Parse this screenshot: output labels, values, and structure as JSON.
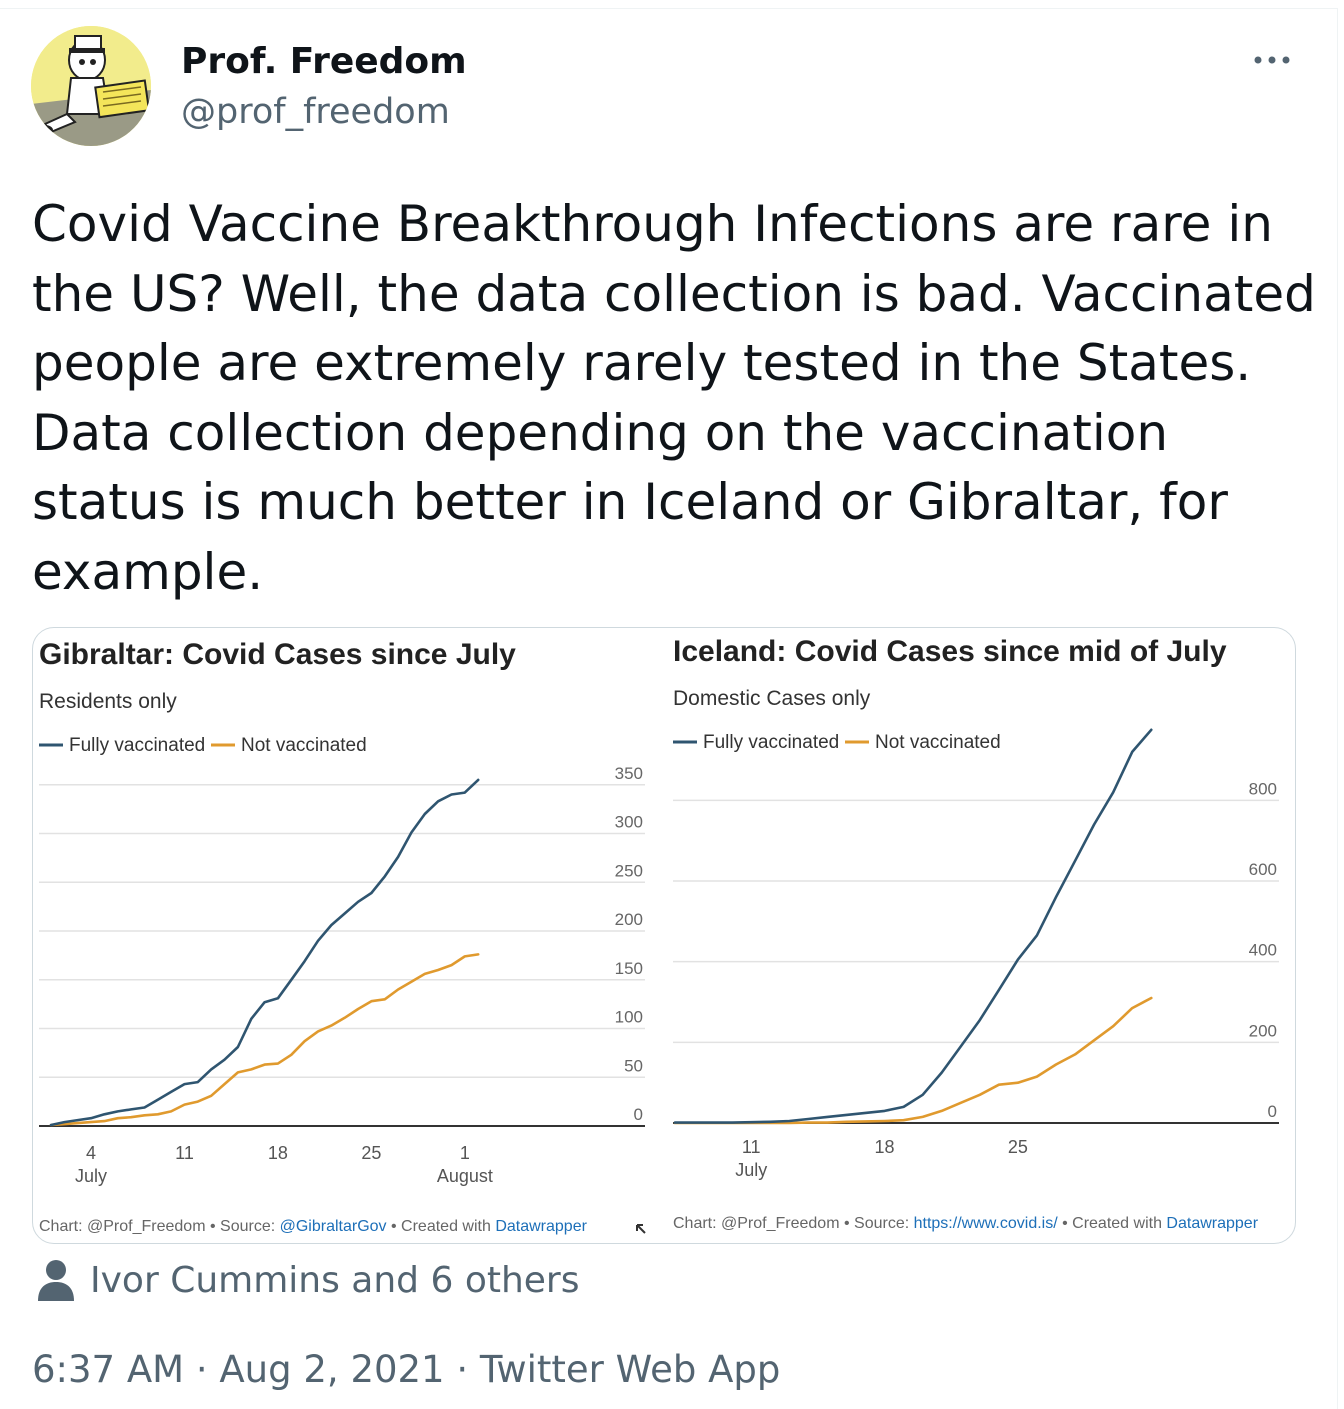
{
  "tweet": {
    "author_name": "Prof. Freedom",
    "author_handle": "@prof_freedom",
    "text": "Covid Vaccine Breakthrough Infections are rare in the US? Well, the data collection is bad. Vaccinated people are extremely rarely tested in the States. Data collection depending on the vaccination status is much better in Iceland or Gibraltar, for example.",
    "liked_by": "Ivor Cummins and 6 others",
    "timestamp": "6:37 AM · Aug 2, 2021 · Twitter Web App",
    "more_icon": "more-options-icon",
    "avatar_sign_text": "STRUGGLING SCIENTIST PLEASE CITE MY PAPERS"
  },
  "colors": {
    "fully": "#2f5570",
    "not": "#e09a2e",
    "grid": "#e2e2e2",
    "link": "#1d6fb8"
  },
  "chart_data": [
    {
      "type": "line",
      "title": "Gibraltar: Covid Cases since July",
      "subtitle": "Residents only",
      "legend": [
        "Fully vaccinated",
        "Not vaccinated"
      ],
      "x_ticks": [
        {
          "day": 4,
          "label": "4",
          "sub": "July"
        },
        {
          "day": 11,
          "label": "11",
          "sub": ""
        },
        {
          "day": 18,
          "label": "18",
          "sub": ""
        },
        {
          "day": 25,
          "label": "25",
          "sub": ""
        },
        {
          "day": 32,
          "label": "1",
          "sub": "August"
        }
      ],
      "y_ticks": [
        0,
        50,
        100,
        150,
        200,
        250,
        300,
        350
      ],
      "ylim": [
        0,
        360
      ],
      "x": [
        "Jul 1",
        "Jul 2",
        "Jul 3",
        "Jul 4",
        "Jul 5",
        "Jul 6",
        "Jul 7",
        "Jul 8",
        "Jul 9",
        "Jul 10",
        "Jul 11",
        "Jul 12",
        "Jul 13",
        "Jul 14",
        "Jul 15",
        "Jul 16",
        "Jul 17",
        "Jul 18",
        "Jul 19",
        "Jul 20",
        "Jul 21",
        "Jul 22",
        "Jul 23",
        "Jul 24",
        "Jul 25",
        "Jul 26",
        "Jul 27",
        "Jul 28",
        "Jul 29",
        "Jul 30",
        "Jul 31",
        "Aug 1",
        "Aug 2"
      ],
      "series": [
        {
          "name": "Fully vaccinated",
          "values": [
            1,
            4,
            6,
            8,
            12,
            15,
            17,
            19,
            27,
            35,
            43,
            45,
            58,
            68,
            81,
            110,
            127,
            131,
            150,
            169,
            190,
            206,
            218,
            230,
            239,
            256,
            276,
            301,
            320,
            333,
            340,
            342,
            355
          ]
        },
        {
          "name": "Not vaccinated",
          "values": [
            1,
            2,
            3,
            4,
            5,
            8,
            9,
            11,
            12,
            15,
            22,
            25,
            31,
            43,
            55,
            58,
            63,
            64,
            73,
            87,
            97,
            103,
            111,
            120,
            128,
            130,
            140,
            148,
            156,
            160,
            165,
            174,
            176
          ]
        }
      ],
      "footer": {
        "prefix": "Chart: @Prof_Freedom • Source: ",
        "source": "@GibraltarGov",
        "mid": " • Created with ",
        "tool": "Datawrapper"
      }
    },
    {
      "type": "line",
      "title": "Iceland: Covid Cases since mid of July",
      "subtitle": "Domestic Cases only",
      "legend": [
        "Fully vaccinated",
        "Not vaccinated"
      ],
      "x_ticks": [
        {
          "day": 11,
          "label": "11",
          "sub": "July"
        },
        {
          "day": 18,
          "label": "18",
          "sub": ""
        },
        {
          "day": 25,
          "label": "25",
          "sub": ""
        }
      ],
      "y_ticks": [
        0,
        200,
        400,
        600,
        800
      ],
      "ylim": [
        0,
        900
      ],
      "x": [
        "Jul 7",
        "Jul 8",
        "Jul 9",
        "Jul 10",
        "Jul 11",
        "Jul 12",
        "Jul 13",
        "Jul 14",
        "Jul 15",
        "Jul 16",
        "Jul 17",
        "Jul 18",
        "Jul 19",
        "Jul 20",
        "Jul 21",
        "Jul 22",
        "Jul 23",
        "Jul 24",
        "Jul 25",
        "Jul 26",
        "Jul 27",
        "Jul 28",
        "Jul 29",
        "Jul 30",
        "Jul 31",
        "Aug 1"
      ],
      "series": [
        {
          "name": "Fully vaccinated",
          "values": [
            1,
            1,
            1,
            1,
            2,
            3,
            5,
            10,
            15,
            20,
            25,
            30,
            40,
            70,
            125,
            190,
            255,
            330,
            405,
            465,
            560,
            650,
            740,
            820,
            920,
            975
          ]
        },
        {
          "name": "Not vaccinated",
          "values": [
            0,
            0,
            0,
            0,
            0,
            0,
            0,
            1,
            1,
            3,
            4,
            5,
            7,
            15,
            30,
            50,
            70,
            95,
            100,
            115,
            145,
            170,
            205,
            240,
            285,
            310
          ]
        }
      ],
      "footer": {
        "prefix": "Chart: @Prof_Freedom • Source: ",
        "source": "https://www.covid.is/",
        "mid": " • Created with ",
        "tool": "Datawrapper"
      }
    }
  ]
}
